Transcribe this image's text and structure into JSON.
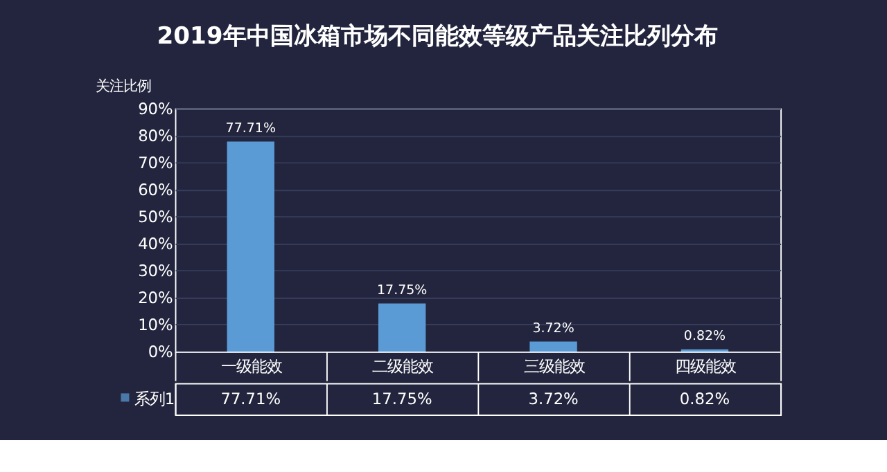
{
  "chart_data": {
    "type": "bar",
    "title": "2019年中国冰箱市场不同能效等级产品关注比列分布",
    "ylabel": "关注比例",
    "categories": [
      "一级能效",
      "二级能效",
      "三级能效",
      "四级能效"
    ],
    "series": [
      {
        "name": "系列1",
        "color": "#5b9bd5",
        "values": [
          77.71,
          17.75,
          3.72,
          0.82
        ]
      }
    ],
    "value_labels": [
      "77.71%",
      "17.75%",
      "3.72%",
      "0.82%"
    ],
    "ylim": [
      0,
      90
    ],
    "yticks": [
      {
        "value": 0,
        "label": "0%"
      },
      {
        "value": 10,
        "label": "10%"
      },
      {
        "value": 20,
        "label": "20%"
      },
      {
        "value": 30,
        "label": "30%"
      },
      {
        "value": 40,
        "label": "40%"
      },
      {
        "value": 50,
        "label": "50%"
      },
      {
        "value": 60,
        "label": "60%"
      },
      {
        "value": 70,
        "label": "70%"
      },
      {
        "value": 80,
        "label": "80%"
      },
      {
        "value": 90,
        "label": "90%"
      }
    ],
    "grid": "y",
    "legend": "bottom"
  }
}
